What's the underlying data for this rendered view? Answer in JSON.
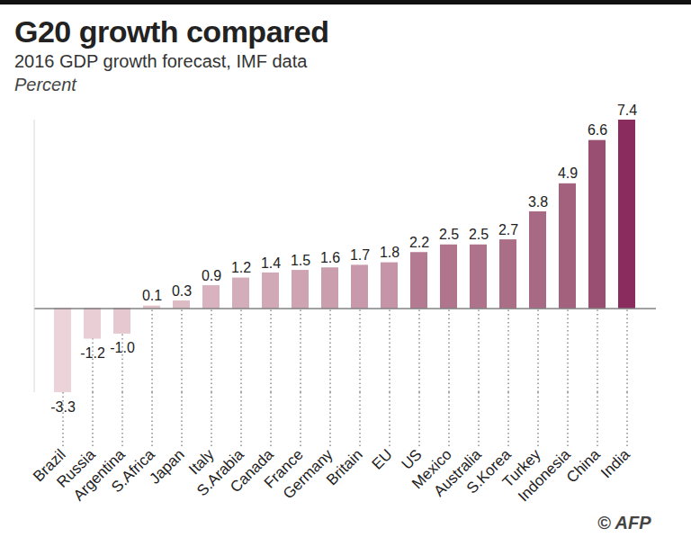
{
  "chart_data": {
    "type": "bar",
    "title": "G20 growth compared",
    "subtitle": "2016 GDP growth forecast, IMF data",
    "y_label": "Percent",
    "credit": "© AFP",
    "categories": [
      "Brazil",
      "Russia",
      "Argentina",
      "S.Africa",
      "Japan",
      "Italy",
      "S.Arabia",
      "Canada",
      "France",
      "Germany",
      "Britain",
      "EU",
      "US",
      "Mexico",
      "Australia",
      "S.Korea",
      "Turkey",
      "Indonesia",
      "China",
      "India"
    ],
    "values": [
      -3.3,
      -1.2,
      -1.0,
      0.1,
      0.3,
      0.9,
      1.2,
      1.4,
      1.5,
      1.6,
      1.7,
      1.8,
      2.2,
      2.5,
      2.5,
      2.7,
      3.8,
      4.9,
      6.6,
      7.4
    ],
    "value_labels": [
      "-3.3",
      "-1.2",
      "-1.0",
      "0.1",
      "0.3",
      "0.9",
      "1.2",
      "1.4",
      "1.5",
      "1.6",
      "1.7",
      "1.8",
      "2.2",
      "2.5",
      "2.5",
      "2.7",
      "3.8",
      "4.9",
      "6.6",
      "7.4"
    ],
    "colors": [
      "#ecd3d9",
      "#e9ced5",
      "#e5c8d0",
      "#e1c2cb",
      "#ddbbc5",
      "#d8b3bf",
      "#d4adba",
      "#d1a8b6",
      "#cea3b2",
      "#cb9eae",
      "#c899aa",
      "#c594a6",
      "#b47a92",
      "#b0758d",
      "#ae728a",
      "#ab6e87",
      "#a86984",
      "#a3617e",
      "#994f72",
      "#8b2c5e"
    ],
    "ylim": [
      -3.3,
      7.4
    ],
    "yticks": [
      0
    ],
    "grid": false,
    "data_labels": true,
    "tick_labels": "x"
  }
}
